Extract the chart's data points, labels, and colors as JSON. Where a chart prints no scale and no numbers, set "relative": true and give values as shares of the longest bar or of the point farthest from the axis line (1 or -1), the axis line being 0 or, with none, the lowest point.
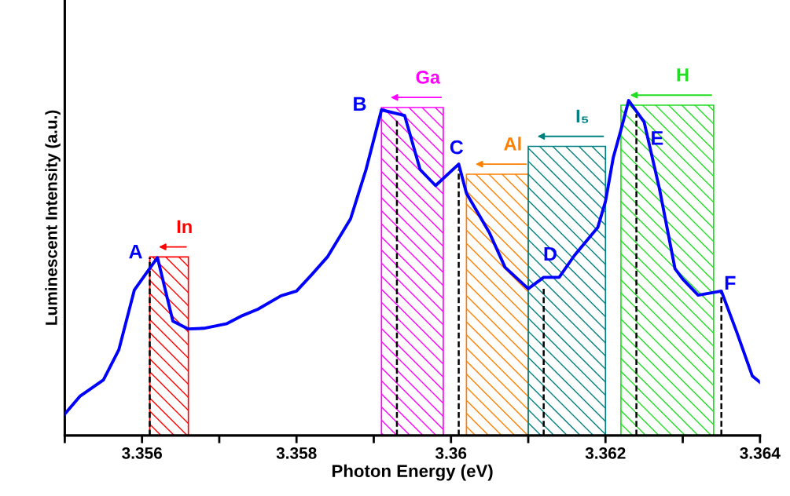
{
  "chart_data": {
    "type": "line",
    "xlabel": "Photon Energy (eV)",
    "ylabel": "Luminescent Intensity (a.u.)",
    "relative": true,
    "xlim": [
      3.355,
      3.364
    ],
    "xticks": [
      {
        "value": 3.355,
        "label": null
      },
      3.356,
      {
        "value": 3.357,
        "label": null
      },
      3.358,
      {
        "value": 3.359,
        "label": null
      },
      3.36,
      {
        "value": 3.361,
        "label": null
      },
      3.362,
      {
        "value": 3.363,
        "label": null
      },
      3.364
    ],
    "grid": false,
    "legend": false,
    "series": [
      {
        "name": "In",
        "type": "area",
        "color": "#ff0000",
        "x": [
          3.3561,
          3.3561,
          3.3566,
          3.3566
        ],
        "values": [
          0,
          0.533,
          0.533,
          0
        ]
      },
      {
        "name": "Ga",
        "type": "area",
        "color": "#ff00ff",
        "x": [
          3.3591,
          3.3591,
          3.3599,
          3.3599
        ],
        "values": [
          0,
          0.979,
          0.979,
          0
        ]
      },
      {
        "name": "Al",
        "type": "area",
        "color": "#ff8000",
        "x": [
          3.3602,
          3.3602,
          3.361,
          3.361
        ],
        "values": [
          0,
          0.78,
          0.78,
          0
        ]
      },
      {
        "name": "I₅",
        "type": "area",
        "color": "#008080",
        "x": [
          3.361,
          3.361,
          3.362,
          3.362
        ],
        "values": [
          0,
          0.863,
          0.863,
          0
        ]
      },
      {
        "name": "H",
        "type": "area",
        "color": "#22dd22",
        "x": [
          3.3622,
          3.3622,
          3.3634,
          3.3634
        ],
        "values": [
          0,
          0.986,
          0.986,
          0
        ]
      },
      {
        "color": "#000000",
        "line_style": "dashed",
        "x": [
          3.3561,
          3.3561
        ],
        "values": [
          0,
          0.531
        ]
      },
      {
        "color": "#000000",
        "line_style": "dashed",
        "x": [
          3.3593,
          3.3593
        ],
        "values": [
          0,
          0.94
        ]
      },
      {
        "color": "#000000",
        "line_style": "dashed",
        "x": [
          3.3601,
          3.3601
        ],
        "values": [
          0,
          0.794
        ]
      },
      {
        "color": "#000000",
        "line_style": "dashed",
        "x": [
          3.3612,
          3.3612
        ],
        "values": [
          0,
          0.438
        ]
      },
      {
        "color": "#000000",
        "line_style": "dashed",
        "x": [
          3.3624,
          3.3624
        ],
        "values": [
          0,
          0.96
        ]
      },
      {
        "color": "#000000",
        "line_style": "dashed",
        "x": [
          3.3635,
          3.3635
        ],
        "values": [
          0,
          0.431
        ]
      },
      {
        "color": "#0000ff",
        "line_style": "solid",
        "x": [
          3.355,
          3.3552,
          3.3555,
          3.3557,
          3.3559,
          3.3562,
          3.3564,
          3.3566,
          3.3568,
          3.3571,
          3.3573,
          3.3575,
          3.3578,
          3.358,
          3.3582,
          3.3584,
          3.3587,
          3.3589,
          3.3591,
          3.3594,
          3.3596,
          3.3598,
          3.3601,
          3.3602,
          3.3605,
          3.3607,
          3.361,
          3.3612,
          3.3614,
          3.3616,
          3.3619,
          3.362,
          3.3621,
          3.3622,
          3.3623,
          3.3625,
          3.3627,
          3.3629,
          3.363,
          3.3632,
          3.3635,
          3.3637,
          3.3639,
          3.364
        ],
        "values": [
          0.064,
          0.118,
          0.166,
          0.256,
          0.434,
          0.531,
          0.341,
          0.318,
          0.32,
          0.334,
          0.358,
          0.377,
          0.417,
          0.431,
          0.481,
          0.533,
          0.647,
          0.794,
          0.972,
          0.955,
          0.794,
          0.746,
          0.81,
          0.723,
          0.604,
          0.502,
          0.438,
          0.472,
          0.472,
          0.538,
          0.621,
          0.699,
          0.829,
          0.912,
          1.0,
          0.936,
          0.735,
          0.498,
          0.467,
          0.419,
          0.431,
          0.308,
          0.178,
          0.159
        ]
      }
    ],
    "annotations": [
      {
        "text": "A",
        "x": 3.3562,
        "y": 0.531
      },
      {
        "text": "B",
        "x": 3.3591,
        "y": 0.972
      },
      {
        "text": "C",
        "x": 3.3601,
        "y": 0.81
      },
      {
        "text": "D",
        "x": 3.3612,
        "y": 0.472
      },
      {
        "text": "E",
        "x": 3.3623,
        "y": 1.0
      },
      {
        "text": "F",
        "x": 3.3635,
        "y": 0.431
      }
    ]
  }
}
